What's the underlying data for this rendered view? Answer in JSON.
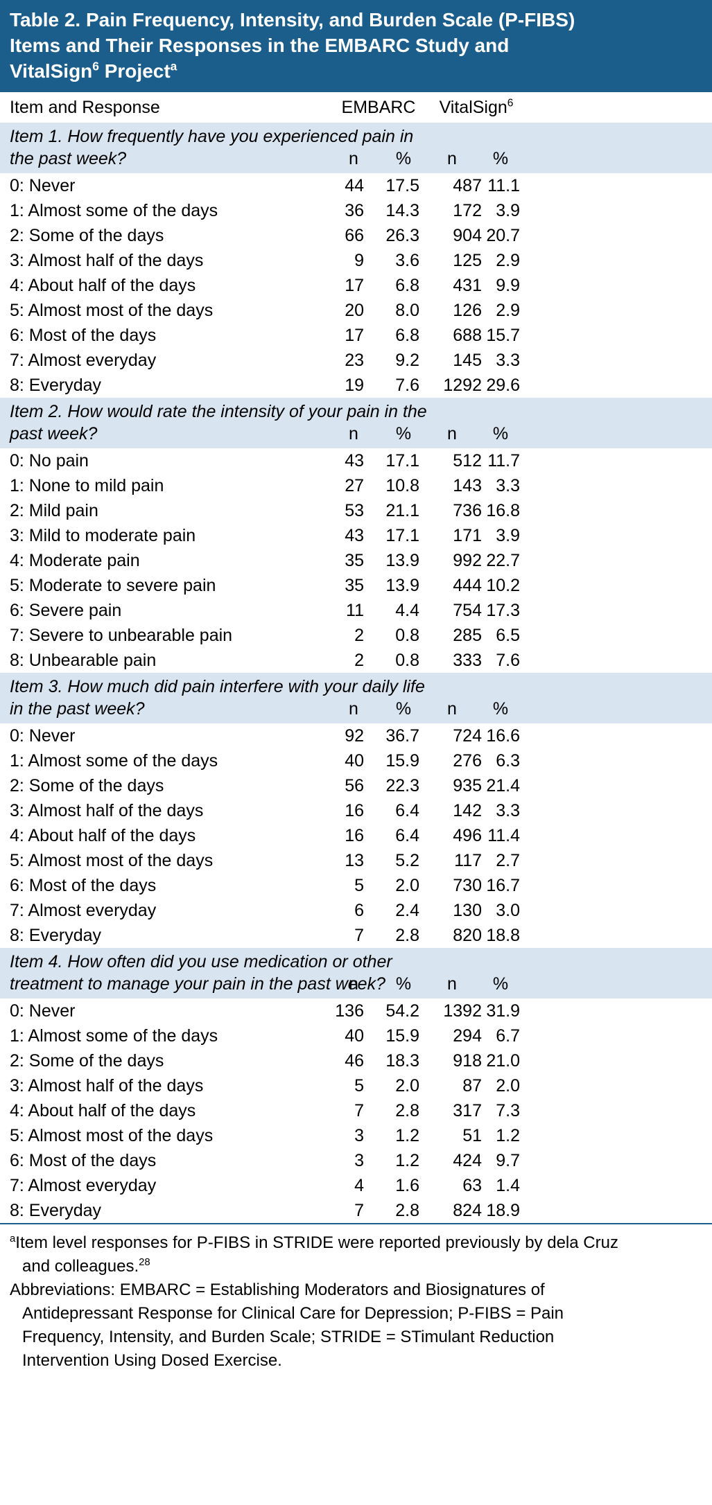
{
  "colors": {
    "header_bar": "#1B5E8C",
    "band_blue": "#D8E5F1",
    "rule": "#1B5E8C",
    "text": "#000000",
    "title_text": "#FFFFFF"
  },
  "title": {
    "pre": "Table 2. Pain Frequency, Intensity, and Burden Scale (P-FIBS) Items and Their Responses in the EMBARC Study and VitalSign",
    "sup1": "6",
    "mid": " Project",
    "sup2": "a"
  },
  "columns": {
    "item": "Item and Response",
    "embarc": "EMBARC",
    "vitalsign_pre": "VitalSign",
    "vitalsign_sup": "6",
    "sub": [
      "n",
      "%",
      "n",
      "%"
    ]
  },
  "sections": [
    {
      "label": "Item 1. How frequently have you experienced pain in the past week?",
      "rows": [
        {
          "label": "0: Never",
          "values": [
            "44",
            "17.5",
            "487",
            "11.1"
          ]
        },
        {
          "label": "1: Almost some of the days",
          "values": [
            "36",
            "14.3",
            "172",
            "3.9"
          ]
        },
        {
          "label": "2: Some of the days",
          "values": [
            "66",
            "26.3",
            "904",
            "20.7"
          ]
        },
        {
          "label": "3: Almost half of the days",
          "values": [
            "9",
            "3.6",
            "125",
            "2.9"
          ]
        },
        {
          "label": "4: About half of the days",
          "values": [
            "17",
            "6.8",
            "431",
            "9.9"
          ]
        },
        {
          "label": "5: Almost most of the days",
          "values": [
            "20",
            "8.0",
            "126",
            "2.9"
          ]
        },
        {
          "label": "6: Most of the days",
          "values": [
            "17",
            "6.8",
            "688",
            "15.7"
          ]
        },
        {
          "label": "7: Almost everyday",
          "values": [
            "23",
            "9.2",
            "145",
            "3.3"
          ]
        },
        {
          "label": "8: Everyday",
          "values": [
            "19",
            "7.6",
            "1292",
            "29.6"
          ]
        }
      ]
    },
    {
      "label": "Item 2. How would rate the intensity of your pain in the past week?",
      "rows": [
        {
          "label": "0: No pain",
          "values": [
            "43",
            "17.1",
            "512",
            "11.7"
          ]
        },
        {
          "label": "1: None to mild pain",
          "values": [
            "27",
            "10.8",
            "143",
            "3.3"
          ]
        },
        {
          "label": "2: Mild pain",
          "values": [
            "53",
            "21.1",
            "736",
            "16.8"
          ]
        },
        {
          "label": "3: Mild to moderate pain",
          "values": [
            "43",
            "17.1",
            "171",
            "3.9"
          ]
        },
        {
          "label": "4: Moderate pain",
          "values": [
            "35",
            "13.9",
            "992",
            "22.7"
          ]
        },
        {
          "label": "5: Moderate to severe pain",
          "values": [
            "35",
            "13.9",
            "444",
            "10.2"
          ]
        },
        {
          "label": "6: Severe pain",
          "values": [
            "11",
            "4.4",
            "754",
            "17.3"
          ]
        },
        {
          "label": "7: Severe to unbearable pain",
          "values": [
            "2",
            "0.8",
            "285",
            "6.5"
          ]
        },
        {
          "label": "8: Unbearable pain",
          "values": [
            "2",
            "0.8",
            "333",
            "7.6"
          ]
        }
      ]
    },
    {
      "label": "Item 3. How much did pain interfere with your daily life in the past week?",
      "rows": [
        {
          "label": "0: Never",
          "values": [
            "92",
            "36.7",
            "724",
            "16.6"
          ]
        },
        {
          "label": "1: Almost some of the days",
          "values": [
            "40",
            "15.9",
            "276",
            "6.3"
          ]
        },
        {
          "label": "2: Some of the days",
          "values": [
            "56",
            "22.3",
            "935",
            "21.4"
          ]
        },
        {
          "label": "3: Almost half of the days",
          "values": [
            "16",
            "6.4",
            "142",
            "3.3"
          ]
        },
        {
          "label": "4: About half of the days",
          "values": [
            "16",
            "6.4",
            "496",
            "11.4"
          ]
        },
        {
          "label": "5: Almost most of the days",
          "values": [
            "13",
            "5.2",
            "117",
            "2.7"
          ]
        },
        {
          "label": "6: Most of the days",
          "values": [
            "5",
            "2.0",
            "730",
            "16.7"
          ]
        },
        {
          "label": "7: Almost everyday",
          "values": [
            "6",
            "2.4",
            "130",
            "3.0"
          ]
        },
        {
          "label": "8: Everyday",
          "values": [
            "7",
            "2.8",
            "820",
            "18.8"
          ]
        }
      ]
    },
    {
      "label": "Item 4. How often did you use medication or other treatment to manage your pain in the past week?",
      "rows": [
        {
          "label": "0: Never",
          "values": [
            "136",
            "54.2",
            "1392",
            "31.9"
          ]
        },
        {
          "label": "1: Almost some of the days",
          "values": [
            "40",
            "15.9",
            "294",
            "6.7"
          ]
        },
        {
          "label": "2: Some of the days",
          "values": [
            "46",
            "18.3",
            "918",
            "21.0"
          ]
        },
        {
          "label": "3: Almost half of the days",
          "values": [
            "5",
            "2.0",
            "87",
            "2.0"
          ]
        },
        {
          "label": "4: About half of the days",
          "values": [
            "7",
            "2.8",
            "317",
            "7.3"
          ]
        },
        {
          "label": "5: Almost most of the days",
          "values": [
            "3",
            "1.2",
            "51",
            "1.2"
          ]
        },
        {
          "label": "6: Most of the days",
          "values": [
            "3",
            "1.2",
            "424",
            "9.7"
          ]
        },
        {
          "label": "7: Almost everyday",
          "values": [
            "4",
            "1.6",
            "63",
            "1.4"
          ]
        },
        {
          "label": "8: Everyday",
          "values": [
            "7",
            "2.8",
            "824",
            "18.9"
          ]
        }
      ]
    }
  ],
  "footnotes": {
    "a_sup": "a",
    "a_text": "Item level responses for P-FIBS in STRIDE were reported previously by dela Cruz and colleagues.",
    "a_ref": "28",
    "abbreviations": "Abbreviations: EMBARC = Establishing Moderators and Biosignatures of Antidepressant Response for Clinical Care for Depression; P-FIBS = Pain Frequency, Intensity, and Burden Scale; STRIDE = STimulant Reduction Intervention Using Dosed Exercise."
  }
}
